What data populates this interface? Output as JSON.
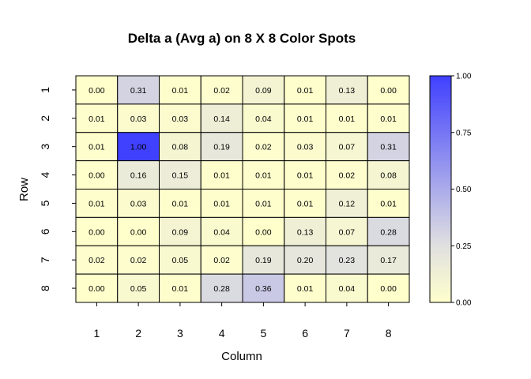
{
  "chart_data": {
    "type": "heatmap",
    "title": "Delta a (Avg a) on 8 X 8 Color Spots",
    "xlabel": "Column",
    "ylabel": "Row",
    "x_categories": [
      "1",
      "2",
      "3",
      "4",
      "5",
      "6",
      "7",
      "8"
    ],
    "y_categories": [
      "1",
      "2",
      "3",
      "4",
      "5",
      "6",
      "7",
      "8"
    ],
    "values": [
      [
        0.0,
        0.31,
        0.01,
        0.02,
        0.09,
        0.01,
        0.13,
        0.0
      ],
      [
        0.01,
        0.03,
        0.03,
        0.14,
        0.04,
        0.01,
        0.01,
        0.01
      ],
      [
        0.01,
        1.0,
        0.08,
        0.19,
        0.02,
        0.03,
        0.07,
        0.31
      ],
      [
        0.0,
        0.16,
        0.15,
        0.01,
        0.01,
        0.01,
        0.02,
        0.08
      ],
      [
        0.01,
        0.03,
        0.01,
        0.01,
        0.01,
        0.01,
        0.12,
        0.01
      ],
      [
        0.0,
        0.0,
        0.09,
        0.04,
        0.0,
        0.13,
        0.07,
        0.28
      ],
      [
        0.02,
        0.02,
        0.05,
        0.02,
        0.19,
        0.2,
        0.23,
        0.17
      ],
      [
        0.0,
        0.05,
        0.01,
        0.28,
        0.36,
        0.01,
        0.04,
        0.0
      ]
    ],
    "color_range": [
      0,
      1
    ],
    "colorbar_ticks": [
      "0.00",
      "0.25",
      "0.50",
      "0.75",
      "1.00"
    ],
    "colors": {
      "low": "#ffffcc",
      "mid": "#e0e0e0",
      "high": "#4040ff"
    },
    "legend": "right"
  }
}
